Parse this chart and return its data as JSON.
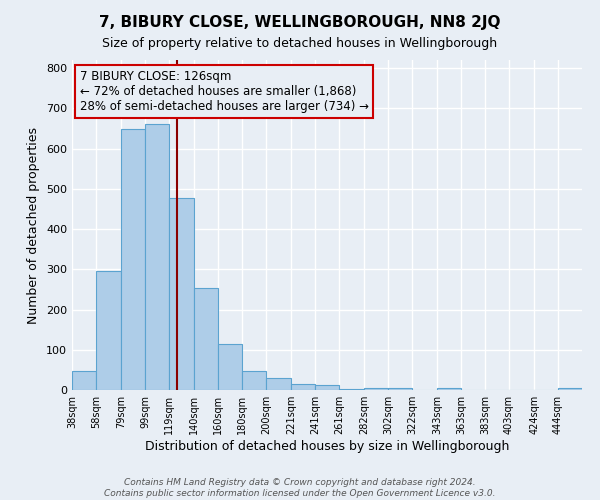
{
  "title": "7, BIBURY CLOSE, WELLINGBOROUGH, NN8 2JQ",
  "subtitle": "Size of property relative to detached houses in Wellingborough",
  "xlabel": "Distribution of detached houses by size in Wellingborough",
  "ylabel": "Number of detached properties",
  "footer_lines": [
    "Contains HM Land Registry data © Crown copyright and database right 2024.",
    "Contains public sector information licensed under the Open Government Licence v3.0."
  ],
  "bin_labels": [
    "38sqm",
    "58sqm",
    "79sqm",
    "99sqm",
    "119sqm",
    "140sqm",
    "160sqm",
    "180sqm",
    "200sqm",
    "221sqm",
    "241sqm",
    "261sqm",
    "282sqm",
    "302sqm",
    "322sqm",
    "343sqm",
    "363sqm",
    "383sqm",
    "403sqm",
    "424sqm",
    "444sqm"
  ],
  "bar_heights": [
    47,
    295,
    648,
    662,
    478,
    254,
    114,
    48,
    29,
    15,
    13,
    2,
    4,
    4,
    1,
    5,
    1,
    1,
    0,
    0,
    6
  ],
  "bar_color": "#aecde8",
  "bar_edge_color": "#5ba3d0",
  "background_color": "#e8eef5",
  "grid_color": "#ffffff",
  "property_line_x": 126,
  "property_line_color": "#8b0000",
  "annotation_line1": "7 BIBURY CLOSE: 126sqm",
  "annotation_line2": "← 72% of detached houses are smaller (1,868)",
  "annotation_line3": "28% of semi-detached houses are larger (734) →",
  "annotation_box_color": "#cc0000",
  "annotation_text_fontsize": 8.5,
  "ylim": [
    0,
    820
  ],
  "yticks": [
    0,
    100,
    200,
    300,
    400,
    500,
    600,
    700,
    800
  ],
  "bin_edges": [
    38,
    58,
    79,
    99,
    119,
    140,
    160,
    180,
    200,
    221,
    241,
    261,
    282,
    302,
    322,
    343,
    363,
    383,
    403,
    424,
    444,
    464
  ]
}
